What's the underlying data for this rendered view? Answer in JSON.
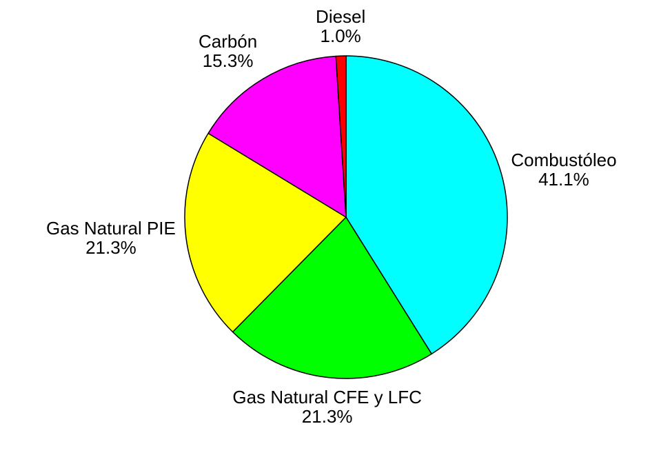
{
  "chart_data": {
    "type": "pie",
    "categories": [
      "Combustóleo",
      "Gas Natural CFE y LFC",
      "Gas Natural PIE",
      "Carbón",
      "Diesel"
    ],
    "values": [
      41.1,
      21.3,
      21.3,
      15.3,
      1.0
    ],
    "value_labels": [
      "41.1%",
      "21.3%",
      "21.3%",
      "15.3%",
      "1.0%"
    ],
    "colors": [
      "#00ffff",
      "#00ff00",
      "#ffff00",
      "#ff00ff",
      "#ff0000"
    ]
  }
}
